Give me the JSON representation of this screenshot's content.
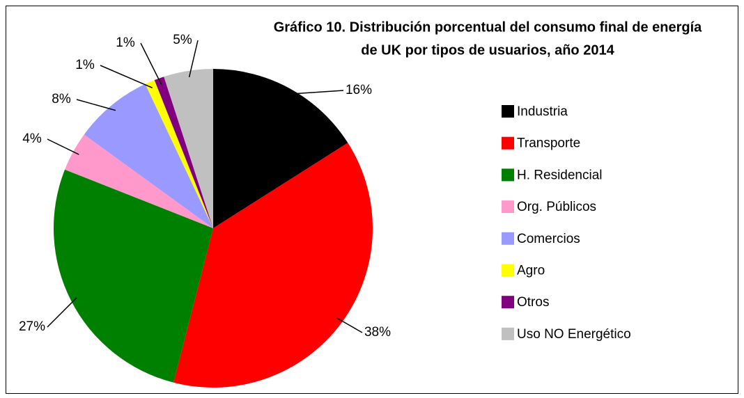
{
  "chart_data": {
    "type": "pie",
    "title": "Gráfico 10. Distribución porcentual del consumo final de energía",
    "subtitle": "de UK por tipos de usuarios, año 2014",
    "categories": [
      "Industria",
      "Transporte",
      "H. Residencial",
      "Org. Públicos",
      "Comercios",
      "Agro",
      "Otros",
      "Uso NO Energético"
    ],
    "values": [
      16,
      38,
      27,
      4,
      8,
      1,
      1,
      5
    ],
    "value_labels": [
      "16%",
      "38%",
      "27%",
      "4%",
      "8%",
      "1%",
      "1%",
      "5%"
    ],
    "colors": [
      "#000000",
      "#ff0000",
      "#008000",
      "#ff99cc",
      "#9999ff",
      "#ffff00",
      "#800080",
      "#c0c0c0"
    ],
    "legend": "right"
  }
}
